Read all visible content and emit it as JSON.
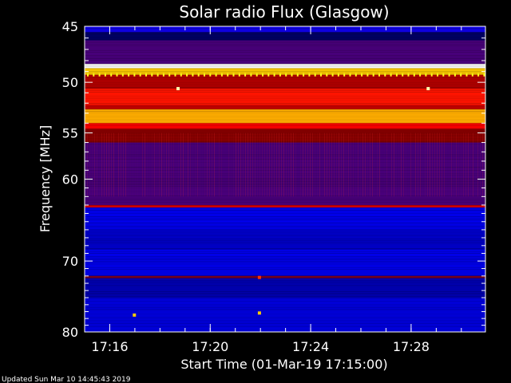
{
  "chart_data": {
    "type": "heatmap",
    "title": "Solar radio Flux (Glasgow)",
    "xlabel": "Start Time (01-Mar-19 17:15:00)",
    "ylabel": "Frequency [MHz]",
    "x_ticks": [
      "17:16",
      "17:20",
      "17:24",
      "17:28"
    ],
    "y_ticks": [
      45,
      50,
      55,
      60,
      70,
      80
    ],
    "ylim": [
      45,
      80
    ],
    "y_scale": "log",
    "x_range_minutes": [
      17.25,
      17.516
    ],
    "colormap": [
      "#000000",
      "#00008b",
      "#0000ff",
      "#8b0000",
      "#ff0000",
      "#ffff00",
      "#ffffff"
    ],
    "frequency_bands": [
      {
        "freq": [
          45.0,
          45.5
        ],
        "level": 0.35
      },
      {
        "freq": [
          45.5,
          46.2
        ],
        "level": 0.12
      },
      {
        "freq": [
          46.2,
          48.3
        ],
        "level": 0.42
      },
      {
        "freq": [
          48.3,
          48.7
        ],
        "level": 1.0
      },
      {
        "freq": [
          48.7,
          49.3
        ],
        "level": 0.8
      },
      {
        "freq": [
          49.3,
          50.6
        ],
        "level": 0.55
      },
      {
        "freq": [
          50.6,
          52.2
        ],
        "level": 0.68
      },
      {
        "freq": [
          52.2,
          52.6
        ],
        "level": 0.58
      },
      {
        "freq": [
          52.6,
          54.0
        ],
        "level": 0.78
      },
      {
        "freq": [
          54.0,
          54.6
        ],
        "level": 0.66
      },
      {
        "freq": [
          54.6,
          56.0
        ],
        "level": 0.5
      },
      {
        "freq": [
          56.0,
          63.0
        ],
        "level": 0.42
      },
      {
        "freq": [
          63.0,
          63.3
        ],
        "level": 0.6
      },
      {
        "freq": [
          63.3,
          66.0
        ],
        "level": 0.3
      },
      {
        "freq": [
          66.0,
          68.5
        ],
        "level": 0.25
      },
      {
        "freq": [
          68.5,
          72.0
        ],
        "level": 0.3
      },
      {
        "freq": [
          72.0,
          72.3
        ],
        "level": 0.48
      },
      {
        "freq": [
          72.3,
          75.0
        ],
        "level": 0.22
      },
      {
        "freq": [
          75.0,
          80.0
        ],
        "level": 0.28
      }
    ],
    "bursts": [
      {
        "freq": 50.6,
        "time_min": 17.312,
        "level": 0.95
      },
      {
        "freq": 50.6,
        "time_min": 17.478,
        "level": 0.95
      },
      {
        "freq": 77.5,
        "time_min": 17.283,
        "level": 0.8
      },
      {
        "freq": 77.2,
        "time_min": 17.366,
        "level": 0.8
      },
      {
        "freq": 72.2,
        "time_min": 17.366,
        "level": 0.7
      }
    ]
  },
  "footer": {
    "updated": "Updated Sun Mar 10 14:45:43 2019"
  }
}
